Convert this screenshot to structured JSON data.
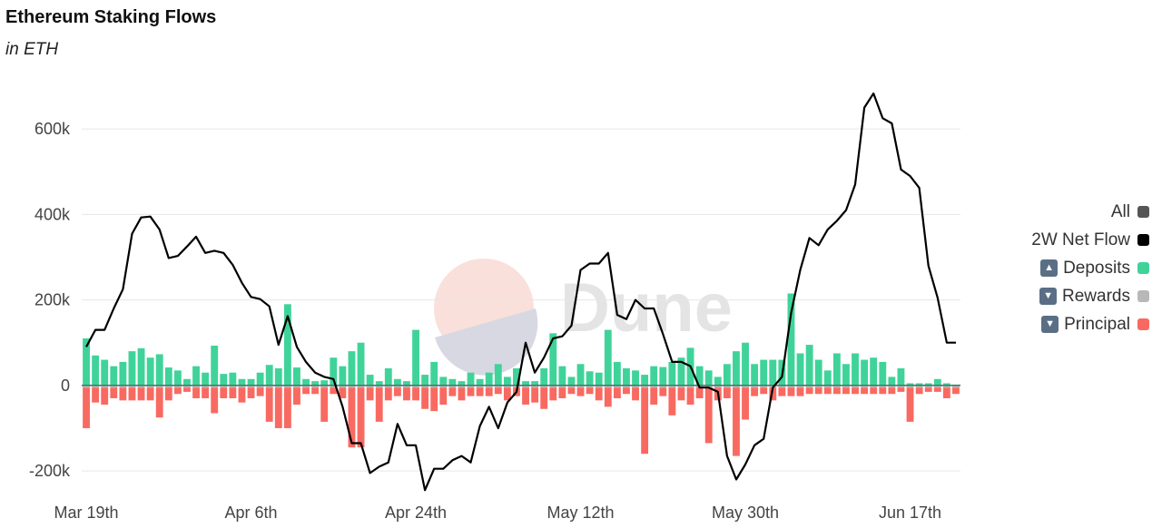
{
  "header": {
    "title": "Ethereum Staking Flows",
    "subtitle": "in ETH"
  },
  "watermark": "Dune",
  "legend": [
    {
      "label": "All",
      "color": "#555555",
      "icon": ""
    },
    {
      "label": "2W Net Flow",
      "color": "#000000",
      "icon": ""
    },
    {
      "label": "Deposits",
      "color": "#3fd39a",
      "icon": "up-arrow-icon"
    },
    {
      "label": "Rewards",
      "color": "#b8b8b8",
      "icon": "down-arrow-icon"
    },
    {
      "label": "Principal",
      "color": "#f86a61",
      "icon": "down-arrow-icon"
    }
  ],
  "chart_data": {
    "type": "bar",
    "title": "Ethereum Staking Flows",
    "subtitle": "in ETH",
    "x_tick_labels": [
      "Mar 19th",
      "Apr 6th",
      "Apr 24th",
      "May 12th",
      "May 30th",
      "Jun 17th"
    ],
    "x_tick_indices": [
      0,
      18,
      36,
      54,
      72,
      90
    ],
    "y_ticks": [
      -200000,
      0,
      200000,
      400000,
      600000
    ],
    "y_tick_labels": [
      "-200k",
      "0",
      "200k",
      "400k",
      "600k"
    ],
    "ylim": [
      -255000,
      700000
    ],
    "grid": true,
    "legend_position": "right",
    "bar_colors": {
      "Deposits": "#3fd39a",
      "Rewards": "#b8b8b8",
      "Principal": "#f86a61"
    },
    "line_color": "#000000",
    "series": [
      {
        "name": "Deposits",
        "values": [
          110000,
          70000,
          60000,
          45000,
          55000,
          80000,
          87000,
          65000,
          73000,
          42000,
          35000,
          15000,
          45000,
          30000,
          93000,
          27000,
          30000,
          15000,
          15000,
          30000,
          48000,
          40000,
          190000,
          42000,
          15000,
          10000,
          12000,
          65000,
          45000,
          80000,
          100000,
          25000,
          10000,
          40000,
          15000,
          10000,
          130000,
          25000,
          55000,
          20000,
          15000,
          10000,
          30000,
          15000,
          30000,
          50000,
          20000,
          40000,
          10000,
          10000,
          40000,
          122000,
          45000,
          20000,
          50000,
          33000,
          30000,
          130000,
          55000,
          40000,
          35000,
          25000,
          45000,
          43000,
          55000,
          65000,
          88000,
          45000,
          35000,
          20000,
          50000,
          80000,
          100000,
          50000,
          60000,
          60000,
          60000,
          215000,
          75000,
          95000,
          60000,
          35000,
          75000,
          50000,
          75000,
          60000,
          65000,
          55000,
          20000,
          40000,
          5000,
          5000,
          5000,
          15000,
          5000,
          2000
        ],
        "unit": "ETH"
      },
      {
        "name": "Rewards",
        "values": [
          -5000,
          -5000,
          -5000,
          -5000,
          -5000,
          -5000,
          -5000,
          -5000,
          -5000,
          -5000,
          -5000,
          -5000,
          -5000,
          -5000,
          -5000,
          -5000,
          -5000,
          -5000,
          -5000,
          -5000,
          -5000,
          -5000,
          -5000,
          -5000,
          -5000,
          -5000,
          -5000,
          -5000,
          -5000,
          -5000,
          -5000,
          -5000,
          -5000,
          -5000,
          -5000,
          -5000,
          -5000,
          -5000,
          -5000,
          -5000,
          -5000,
          -5000,
          -5000,
          -5000,
          -5000,
          -5000,
          -5000,
          -5000,
          -5000,
          -5000,
          -5000,
          -5000,
          -5000,
          -5000,
          -5000,
          -5000,
          -5000,
          -5000,
          -5000,
          -5000,
          -5000,
          -5000,
          -5000,
          -5000,
          -5000,
          -5000,
          -5000,
          -5000,
          -5000,
          -5000,
          -5000,
          -5000,
          -5000,
          -5000,
          -5000,
          -5000,
          -5000,
          -5000,
          -5000,
          -5000,
          -5000,
          -5000,
          -5000,
          -5000,
          -5000,
          -5000,
          -5000,
          -5000,
          -5000,
          -5000,
          -5000,
          -5000,
          -5000,
          -5000,
          -5000,
          -5000
        ],
        "unit": "ETH"
      },
      {
        "name": "Principal",
        "values": [
          -95000,
          -35000,
          -40000,
          -25000,
          -30000,
          -30000,
          -30000,
          -30000,
          -70000,
          -30000,
          -15000,
          -10000,
          -25000,
          -25000,
          -60000,
          -25000,
          -25000,
          -35000,
          -25000,
          -20000,
          -80000,
          -95000,
          -95000,
          -40000,
          -15000,
          -15000,
          -80000,
          -15000,
          -25000,
          -140000,
          -140000,
          -30000,
          -80000,
          -30000,
          -20000,
          -30000,
          -30000,
          -50000,
          -55000,
          -40000,
          -20000,
          -30000,
          -20000,
          -20000,
          -20000,
          -15000,
          -30000,
          -20000,
          -40000,
          -35000,
          -50000,
          -30000,
          -25000,
          -15000,
          -20000,
          -15000,
          -30000,
          -45000,
          -25000,
          -15000,
          -30000,
          -155000,
          -40000,
          -20000,
          -65000,
          -30000,
          -40000,
          -25000,
          -130000,
          -30000,
          -25000,
          -160000,
          -75000,
          -20000,
          -15000,
          -30000,
          -20000,
          -20000,
          -20000,
          -15000,
          -15000,
          -15000,
          -15000,
          -15000,
          -15000,
          -15000,
          -15000,
          -15000,
          -15000,
          -10000,
          -80000,
          -15000,
          -10000,
          -10000,
          -25000,
          -15000
        ],
        "unit": "ETH"
      },
      {
        "name": "2W Net Flow",
        "type": "line",
        "values": [
          90000,
          130000,
          130000,
          180000,
          225000,
          355000,
          393000,
          395000,
          365000,
          298000,
          303000,
          325000,
          348000,
          310000,
          315000,
          310000,
          282000,
          240000,
          207000,
          202000,
          185000,
          95000,
          162000,
          90000,
          55000,
          30000,
          20000,
          15000,
          -50000,
          -135000,
          -135000,
          -205000,
          -190000,
          -180000,
          -90000,
          -140000,
          -140000,
          -245000,
          -195000,
          -195000,
          -175000,
          -165000,
          -180000,
          -95000,
          -50000,
          -100000,
          -40000,
          -15000,
          100000,
          30000,
          65000,
          110000,
          115000,
          140000,
          270000,
          285000,
          285000,
          310000,
          165000,
          155000,
          200000,
          180000,
          180000,
          120000,
          55000,
          55000,
          45000,
          -5000,
          -5000,
          -15000,
          -165000,
          -220000,
          -185000,
          -140000,
          -125000,
          -5000,
          20000,
          170000,
          270000,
          345000,
          328000,
          365000,
          385000,
          410000,
          470000,
          650000,
          683000,
          625000,
          613000,
          505000,
          490000,
          462000,
          280000,
          205000,
          100000,
          100000
        ],
        "unit": "ETH"
      }
    ]
  }
}
